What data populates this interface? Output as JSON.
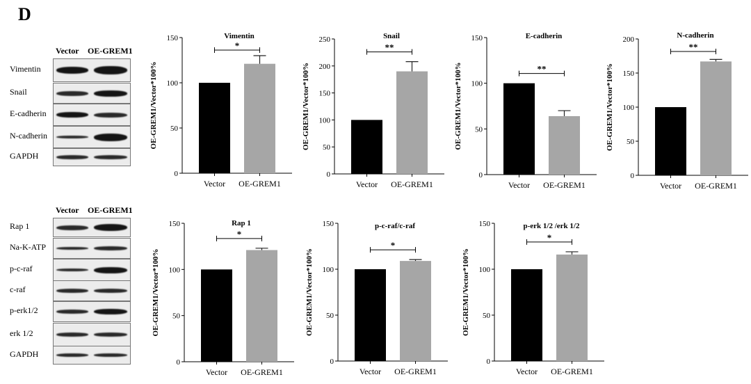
{
  "panel_letter": "D",
  "blots": {
    "top": {
      "headers": [
        "Vector",
        "OE-GREM1"
      ],
      "rows": [
        "Vimentin",
        "Snail",
        "E-cadherin",
        "N-cadherin",
        "GAPDH"
      ]
    },
    "bottom": {
      "headers": [
        "Vector",
        "OE-GREM1"
      ],
      "rows": [
        "Rap 1",
        "Na-K-ATP",
        "p-c-raf",
        "c-raf",
        "p-erk1/2",
        "erk 1/2",
        "GAPDH"
      ]
    }
  },
  "colors": {
    "vector": "#000000",
    "oe": "#a6a6a6",
    "axis": "#000000"
  },
  "chart_data": [
    {
      "type": "bar",
      "title": "Vimentin",
      "categories": [
        "Vector",
        "OE-GREM1"
      ],
      "values": [
        100,
        121
      ],
      "errors": [
        0,
        9
      ],
      "ylim": [
        0,
        150
      ],
      "yticks": [
        0,
        50,
        100,
        150
      ],
      "ylabel": "OE-GREM1/Vector*100%",
      "significance": "*"
    },
    {
      "type": "bar",
      "title": "Snail",
      "categories": [
        "Vector",
        "OE-GREM1"
      ],
      "values": [
        100,
        190
      ],
      "errors": [
        0,
        18
      ],
      "ylim": [
        0,
        250
      ],
      "yticks": [
        0,
        50,
        100,
        150,
        200,
        250
      ],
      "ylabel": "OE-GREM1/Vector*100%",
      "significance": "**"
    },
    {
      "type": "bar",
      "title": "E-cadherin",
      "categories": [
        "Vector",
        "OE-GREM1"
      ],
      "values": [
        100,
        64
      ],
      "errors": [
        0,
        6
      ],
      "ylim": [
        0,
        150
      ],
      "yticks": [
        0,
        50,
        100,
        150
      ],
      "ylabel": "OE-GREM1/Vector*100%",
      "significance": "**"
    },
    {
      "type": "bar",
      "title": "N-cadherin",
      "categories": [
        "Vector",
        "OE-GREM1"
      ],
      "values": [
        100,
        167
      ],
      "errors": [
        0,
        3
      ],
      "ylim": [
        0,
        200
      ],
      "yticks": [
        0,
        50,
        100,
        150,
        200
      ],
      "ylabel": "OE-GREM1/Vector*100%",
      "significance": "**"
    },
    {
      "type": "bar",
      "title": "Rap 1",
      "categories": [
        "Vector",
        "OE-GREM1"
      ],
      "values": [
        100,
        121
      ],
      "errors": [
        0,
        2
      ],
      "ylim": [
        0,
        150
      ],
      "yticks": [
        0,
        50,
        100,
        150
      ],
      "ylabel": "OE-GREM1/Vector*100%",
      "significance": "*"
    },
    {
      "type": "bar",
      "title": "p-c-raf/c-raf",
      "categories": [
        "Vector",
        "OE-GREM1"
      ],
      "values": [
        100,
        109
      ],
      "errors": [
        0,
        1.5
      ],
      "ylim": [
        0,
        150
      ],
      "yticks": [
        0,
        50,
        100,
        150
      ],
      "ylabel": "OE-GREM1/Vector*100%",
      "significance": "*"
    },
    {
      "type": "bar",
      "title": "p-erk 1/2 /erk 1/2",
      "categories": [
        "Vector",
        "OE-GREM1"
      ],
      "values": [
        100,
        116
      ],
      "errors": [
        0,
        3
      ],
      "ylim": [
        0,
        150
      ],
      "yticks": [
        0,
        50,
        100,
        150
      ],
      "ylabel": "OE-GREM1/Vector*100%",
      "significance": "*"
    }
  ]
}
